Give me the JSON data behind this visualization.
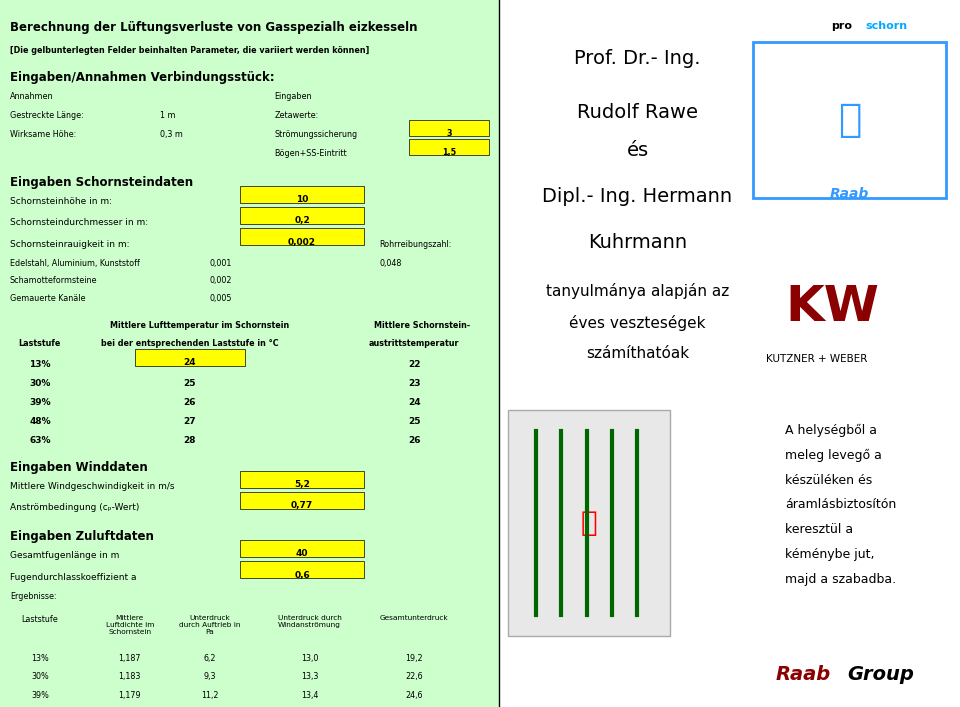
{
  "bg_left": "#ccffcc",
  "bg_right": "#ffffff",
  "yellow": "#ffff00",
  "title1": "Berechnung der Lüftungsverluste von Gassspezialheizkesseln",
  "title2": "[Die gelbunterlegten Felder beinhalten Parameter, die variiert werden können]",
  "title3": "Eingaben/Annahmen Verbindungsstück:",
  "right_text_line1": "Prof. Dr.- Ing.",
  "right_text_line2": "Rudolf Rawe",
  "right_text_line3": "és",
  "right_text_line4": "Dipl.- Ing. Hermann",
  "right_text_line5": "Kuhrmann",
  "right_text_line6": "tanyulmánya alapján az",
  "right_text_line7": "éves veszteségek",
  "right_text_line8": "számíthatóak",
  "bottom_right_text": "A helyégből a meleg levegő a készüléken és áramlásbiztosítón keresztül a kéménybe jut, majd a szabadba.",
  "proschorn": "proschorn"
}
